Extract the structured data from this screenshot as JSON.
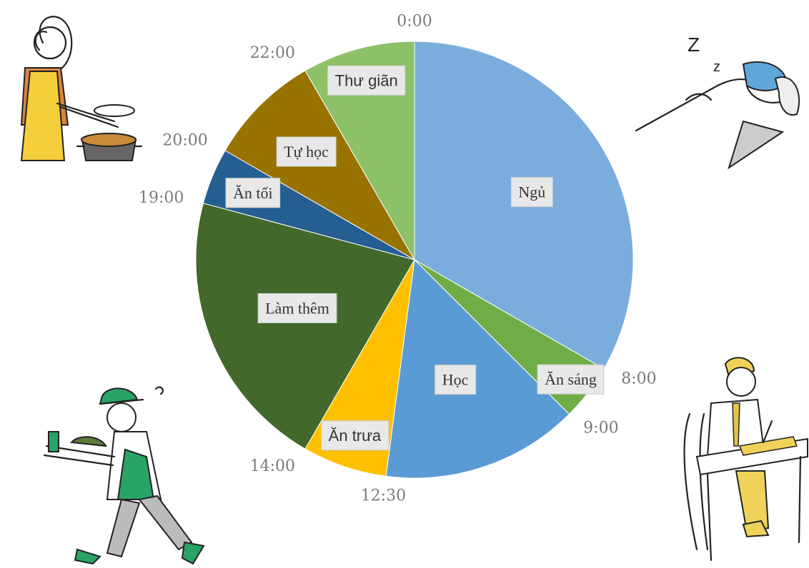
{
  "chart_data": {
    "type": "pie",
    "start_angle": "top",
    "direction": "clockwise",
    "colors": {
      "ngu": "#7aaddd",
      "an_sang": "#70ad47",
      "hoc": "#5b9bd5",
      "an_trua": "#ffc000",
      "lam_them": "#43682b",
      "an_toi": "#255e91",
      "tu_hoc": "#997300",
      "thu_gian": "#8cc168"
    },
    "slices": [
      {
        "key": "ngu",
        "label": "Ngủ",
        "start": 0,
        "end": 8,
        "font": "serif"
      },
      {
        "key": "an_sang",
        "label": "Ăn sáng",
        "start": 8,
        "end": 9,
        "font": "serif"
      },
      {
        "key": "hoc",
        "label": "Học",
        "start": 9,
        "end": 12.5,
        "font": "serif"
      },
      {
        "key": "an_trua",
        "label": "Ăn trưa",
        "start": 12.5,
        "end": 14,
        "font": "sans"
      },
      {
        "key": "lam_them",
        "label": "Làm thêm",
        "start": 14,
        "end": 19,
        "font": "serif"
      },
      {
        "key": "an_toi",
        "label": "Ăn tối",
        "start": 19,
        "end": 20,
        "font": "serif"
      },
      {
        "key": "tu_hoc",
        "label": "Tự học",
        "start": 20,
        "end": 22,
        "font": "serif"
      },
      {
        "key": "thu_gian",
        "label": "Thư giãn",
        "start": 22,
        "end": 24,
        "font": "sans"
      }
    ],
    "time_labels": [
      {
        "hour": 0,
        "text": "0:00"
      },
      {
        "hour": 8,
        "text": "8:00"
      },
      {
        "hour": 9,
        "text": "9:00"
      },
      {
        "hour": 12.5,
        "text": "12:30"
      },
      {
        "hour": 14,
        "text": "14:00"
      },
      {
        "hour": 19,
        "text": "19:00"
      },
      {
        "hour": 20,
        "text": "20:00"
      },
      {
        "hour": 22,
        "text": "22:00"
      }
    ]
  },
  "illustrations": [
    {
      "name": "cooking-woman-illustration",
      "icon": "cooking-icon"
    },
    {
      "name": "sleeping-person-illustration",
      "icon": "sleep-icon",
      "glyphs": [
        "Z",
        "z"
      ]
    },
    {
      "name": "delivery-worker-illustration",
      "icon": "delivery-icon"
    },
    {
      "name": "studying-student-illustration",
      "icon": "study-icon"
    }
  ]
}
